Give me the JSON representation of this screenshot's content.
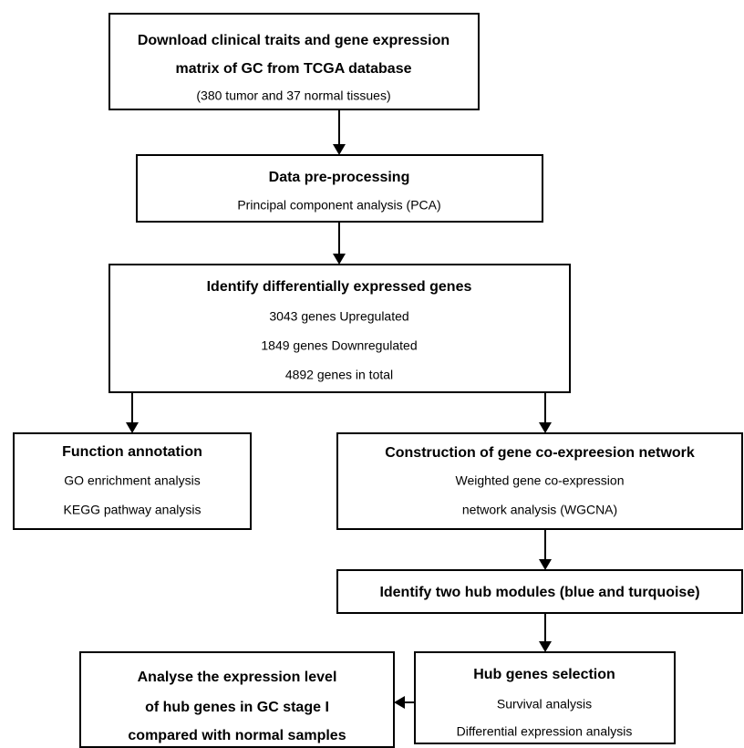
{
  "nodes": [
    {
      "title": "Download clinical traits and gene expression",
      "lines": [
        "matrix of GC from TCGA database",
        "(380 tumor and 37 normal tissues)"
      ]
    },
    {
      "title": "Data pre-processing",
      "lines": [
        "Principal component analysis (PCA)"
      ]
    },
    {
      "title": "Identify differentially expressed genes",
      "lines": [
        "3043 genes Upregulated",
        "1849 genes Downregulated",
        "4892 genes in total"
      ]
    },
    {
      "title": "Function annotation",
      "lines": [
        "GO enrichment analysis",
        "KEGG pathway analysis"
      ]
    },
    {
      "title": "Construction of gene co-expreesion network",
      "lines": [
        "Weighted gene co-expression",
        "network analysis (WGCNA)"
      ]
    },
    {
      "title": "Identify two hub modules (blue and turquoise)",
      "lines": []
    },
    {
      "title": "Hub genes selection",
      "lines": [
        "Survival analysis",
        "Differential expression analysis"
      ]
    },
    {
      "title": "Analyse the expression level",
      "lines": [
        "of hub genes in GC stage I",
        "compared with normal samples"
      ]
    }
  ]
}
